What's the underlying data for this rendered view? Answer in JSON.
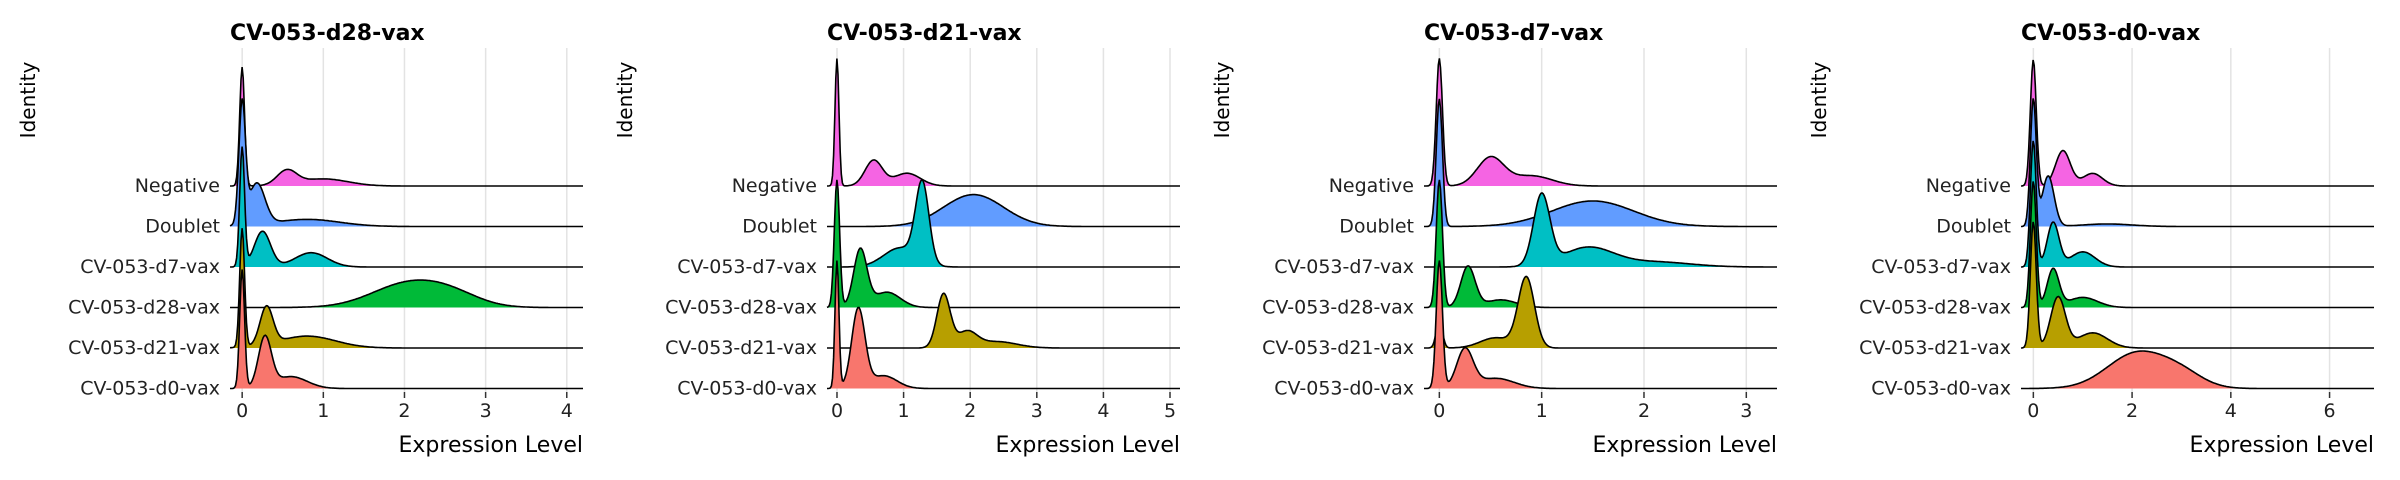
{
  "chart_data": [
    {
      "type": "ridgeline",
      "title": "CV-053-d28-vax",
      "xlabel": "Expression Level",
      "ylabel": "Identity",
      "xlim": [
        -0.15,
        4.2
      ],
      "xticks": [
        0,
        1,
        2,
        3,
        4
      ],
      "categories": [
        "CV-053-d0-vax",
        "CV-053-d21-vax",
        "CV-053-d28-vax",
        "CV-053-d7-vax",
        "Doublet",
        "Negative"
      ],
      "series": [
        {
          "label": "CV-053-d0-vax",
          "color": "#F8766D",
          "components": [
            {
              "mu": 0.0,
              "sd": 0.03,
              "w": 1.0
            },
            {
              "mu": 0.28,
              "sd": 0.08,
              "w": 0.42
            },
            {
              "mu": 0.6,
              "sd": 0.2,
              "w": 0.1
            }
          ]
        },
        {
          "label": "CV-053-d21-vax",
          "color": "#B79F00",
          "components": [
            {
              "mu": 0.0,
              "sd": 0.03,
              "w": 1.0
            },
            {
              "mu": 0.3,
              "sd": 0.08,
              "w": 0.32
            },
            {
              "mu": 0.8,
              "sd": 0.35,
              "w": 0.1
            }
          ]
        },
        {
          "label": "CV-053-d28-vax",
          "color": "#00BA38",
          "components": [
            {
              "mu": 2.05,
              "sd": 0.45,
              "w": 0.2
            },
            {
              "mu": 2.6,
              "sd": 0.35,
              "w": 0.08
            }
          ]
        },
        {
          "label": "CV-053-d7-vax",
          "color": "#00BFC4",
          "components": [
            {
              "mu": 0.0,
              "sd": 0.03,
              "w": 1.0
            },
            {
              "mu": 0.25,
              "sd": 0.1,
              "w": 0.3
            },
            {
              "mu": 0.85,
              "sd": 0.2,
              "w": 0.12
            }
          ]
        },
        {
          "label": "Doublet",
          "color": "#619CFF",
          "components": [
            {
              "mu": 0.0,
              "sd": 0.04,
              "w": 1.0
            },
            {
              "mu": 0.18,
              "sd": 0.1,
              "w": 0.35
            },
            {
              "mu": 0.8,
              "sd": 0.4,
              "w": 0.06
            }
          ]
        },
        {
          "label": "Negative",
          "color": "#F564E3",
          "components": [
            {
              "mu": 0.0,
              "sd": 0.03,
              "w": 1.0
            },
            {
              "mu": 0.55,
              "sd": 0.12,
              "w": 0.12
            },
            {
              "mu": 1.0,
              "sd": 0.3,
              "w": 0.06
            }
          ]
        }
      ]
    },
    {
      "type": "ridgeline",
      "title": "CV-053-d21-vax",
      "xlabel": "Expression Level",
      "ylabel": "Identity",
      "xlim": [
        -0.15,
        5.15
      ],
      "xticks": [
        0,
        1,
        2,
        3,
        4,
        5
      ],
      "categories": [
        "CV-053-d0-vax",
        "CV-053-d21-vax",
        "CV-053-d28-vax",
        "CV-053-d7-vax",
        "Doublet",
        "Negative"
      ],
      "series": [
        {
          "label": "CV-053-d0-vax",
          "color": "#F8766D",
          "components": [
            {
              "mu": 0.0,
              "sd": 0.03,
              "w": 1.0
            },
            {
              "mu": 0.32,
              "sd": 0.1,
              "w": 0.62
            },
            {
              "mu": 0.7,
              "sd": 0.2,
              "w": 0.1
            }
          ]
        },
        {
          "label": "CV-053-d21-vax",
          "color": "#B79F00",
          "components": [
            {
              "mu": 1.6,
              "sd": 0.1,
              "w": 0.42
            },
            {
              "mu": 1.95,
              "sd": 0.15,
              "w": 0.12
            },
            {
              "mu": 2.4,
              "sd": 0.3,
              "w": 0.05
            }
          ]
        },
        {
          "label": "CV-053-d28-vax",
          "color": "#00BA38",
          "components": [
            {
              "mu": 0.0,
              "sd": 0.04,
              "w": 1.0
            },
            {
              "mu": 0.35,
              "sd": 0.1,
              "w": 0.45
            },
            {
              "mu": 0.75,
              "sd": 0.2,
              "w": 0.12
            }
          ]
        },
        {
          "label": "CV-053-d7-vax",
          "color": "#00BFC4",
          "components": [
            {
              "mu": 1.28,
              "sd": 0.1,
              "w": 0.62
            },
            {
              "mu": 0.95,
              "sd": 0.25,
              "w": 0.15
            }
          ]
        },
        {
          "label": "Doublet",
          "color": "#619CFF",
          "components": [
            {
              "mu": 2.05,
              "sd": 0.45,
              "w": 0.25
            }
          ]
        },
        {
          "label": "Negative",
          "color": "#F564E3",
          "components": [
            {
              "mu": 0.0,
              "sd": 0.03,
              "w": 1.0
            },
            {
              "mu": 0.55,
              "sd": 0.13,
              "w": 0.2
            },
            {
              "mu": 1.05,
              "sd": 0.2,
              "w": 0.1
            }
          ]
        }
      ]
    },
    {
      "type": "ridgeline",
      "title": "CV-053-d7-vax",
      "xlabel": "Expression Level",
      "ylabel": "Identity",
      "xlim": [
        -0.15,
        3.3
      ],
      "xticks": [
        0,
        1,
        2,
        3
      ],
      "categories": [
        "CV-053-d0-vax",
        "CV-053-d21-vax",
        "CV-053-d28-vax",
        "CV-053-d7-vax",
        "Doublet",
        "Negative"
      ],
      "series": [
        {
          "label": "CV-053-d0-vax",
          "color": "#F8766D",
          "components": [
            {
              "mu": 0.0,
              "sd": 0.03,
              "w": 1.0
            },
            {
              "mu": 0.25,
              "sd": 0.08,
              "w": 0.3
            },
            {
              "mu": 0.55,
              "sd": 0.18,
              "w": 0.08
            }
          ]
        },
        {
          "label": "CV-053-d21-vax",
          "color": "#B79F00",
          "components": [
            {
              "mu": 0.0,
              "sd": 0.03,
              "w": 0.22
            },
            {
              "mu": 0.85,
              "sd": 0.08,
              "w": 0.55
            },
            {
              "mu": 0.55,
              "sd": 0.15,
              "w": 0.08
            }
          ]
        },
        {
          "label": "CV-053-d28-vax",
          "color": "#00BA38",
          "components": [
            {
              "mu": 0.0,
              "sd": 0.03,
              "w": 1.0
            },
            {
              "mu": 0.28,
              "sd": 0.07,
              "w": 0.32
            },
            {
              "mu": 0.6,
              "sd": 0.15,
              "w": 0.06
            }
          ]
        },
        {
          "label": "CV-053-d7-vax",
          "color": "#00BFC4",
          "components": [
            {
              "mu": 1.0,
              "sd": 0.08,
              "w": 0.55
            },
            {
              "mu": 1.45,
              "sd": 0.25,
              "w": 0.15
            },
            {
              "mu": 2.1,
              "sd": 0.35,
              "w": 0.04
            }
          ]
        },
        {
          "label": "Doublet",
          "color": "#619CFF",
          "components": [
            {
              "mu": 0.0,
              "sd": 0.03,
              "w": 1.0
            },
            {
              "mu": 1.5,
              "sd": 0.4,
              "w": 0.2
            }
          ]
        },
        {
          "label": "Negative",
          "color": "#F564E3",
          "components": [
            {
              "mu": 0.0,
              "sd": 0.03,
              "w": 1.0
            },
            {
              "mu": 0.5,
              "sd": 0.13,
              "w": 0.22
            },
            {
              "mu": 0.9,
              "sd": 0.2,
              "w": 0.08
            }
          ]
        }
      ]
    },
    {
      "type": "ridgeline",
      "title": "CV-053-d0-vax",
      "xlabel": "Expression Level",
      "ylabel": "Identity",
      "xlim": [
        -0.25,
        6.9
      ],
      "xticks": [
        0,
        2,
        4,
        6
      ],
      "categories": [
        "CV-053-d0-vax",
        "CV-053-d21-vax",
        "CV-053-d28-vax",
        "CV-053-d7-vax",
        "Doublet",
        "Negative"
      ],
      "series": [
        {
          "label": "CV-053-d0-vax",
          "color": "#F8766D",
          "components": [
            {
              "mu": 2.1,
              "sd": 0.6,
              "w": 0.28
            },
            {
              "mu": 3.0,
              "sd": 0.45,
              "w": 0.1
            }
          ]
        },
        {
          "label": "CV-053-d21-vax",
          "color": "#B79F00",
          "components": [
            {
              "mu": 0.0,
              "sd": 0.06,
              "w": 1.0
            },
            {
              "mu": 0.5,
              "sd": 0.15,
              "w": 0.4
            },
            {
              "mu": 1.2,
              "sd": 0.3,
              "w": 0.12
            }
          ]
        },
        {
          "label": "CV-053-d28-vax",
          "color": "#00BA38",
          "components": [
            {
              "mu": 0.0,
              "sd": 0.06,
              "w": 1.0
            },
            {
              "mu": 0.4,
              "sd": 0.12,
              "w": 0.3
            },
            {
              "mu": 1.0,
              "sd": 0.3,
              "w": 0.08
            }
          ]
        },
        {
          "label": "CV-053-d7-vax",
          "color": "#00BFC4",
          "components": [
            {
              "mu": 0.0,
              "sd": 0.06,
              "w": 1.0
            },
            {
              "mu": 0.4,
              "sd": 0.12,
              "w": 0.35
            },
            {
              "mu": 1.0,
              "sd": 0.25,
              "w": 0.12
            }
          ]
        },
        {
          "label": "Doublet",
          "color": "#619CFF",
          "components": [
            {
              "mu": 0.0,
              "sd": 0.06,
              "w": 1.0
            },
            {
              "mu": 0.3,
              "sd": 0.12,
              "w": 0.4
            },
            {
              "mu": 1.5,
              "sd": 0.5,
              "w": 0.02
            }
          ]
        },
        {
          "label": "Negative",
          "color": "#F564E3",
          "components": [
            {
              "mu": 0.0,
              "sd": 0.06,
              "w": 1.0
            },
            {
              "mu": 0.6,
              "sd": 0.15,
              "w": 0.28
            },
            {
              "mu": 1.2,
              "sd": 0.2,
              "w": 0.1
            }
          ]
        }
      ]
    }
  ]
}
